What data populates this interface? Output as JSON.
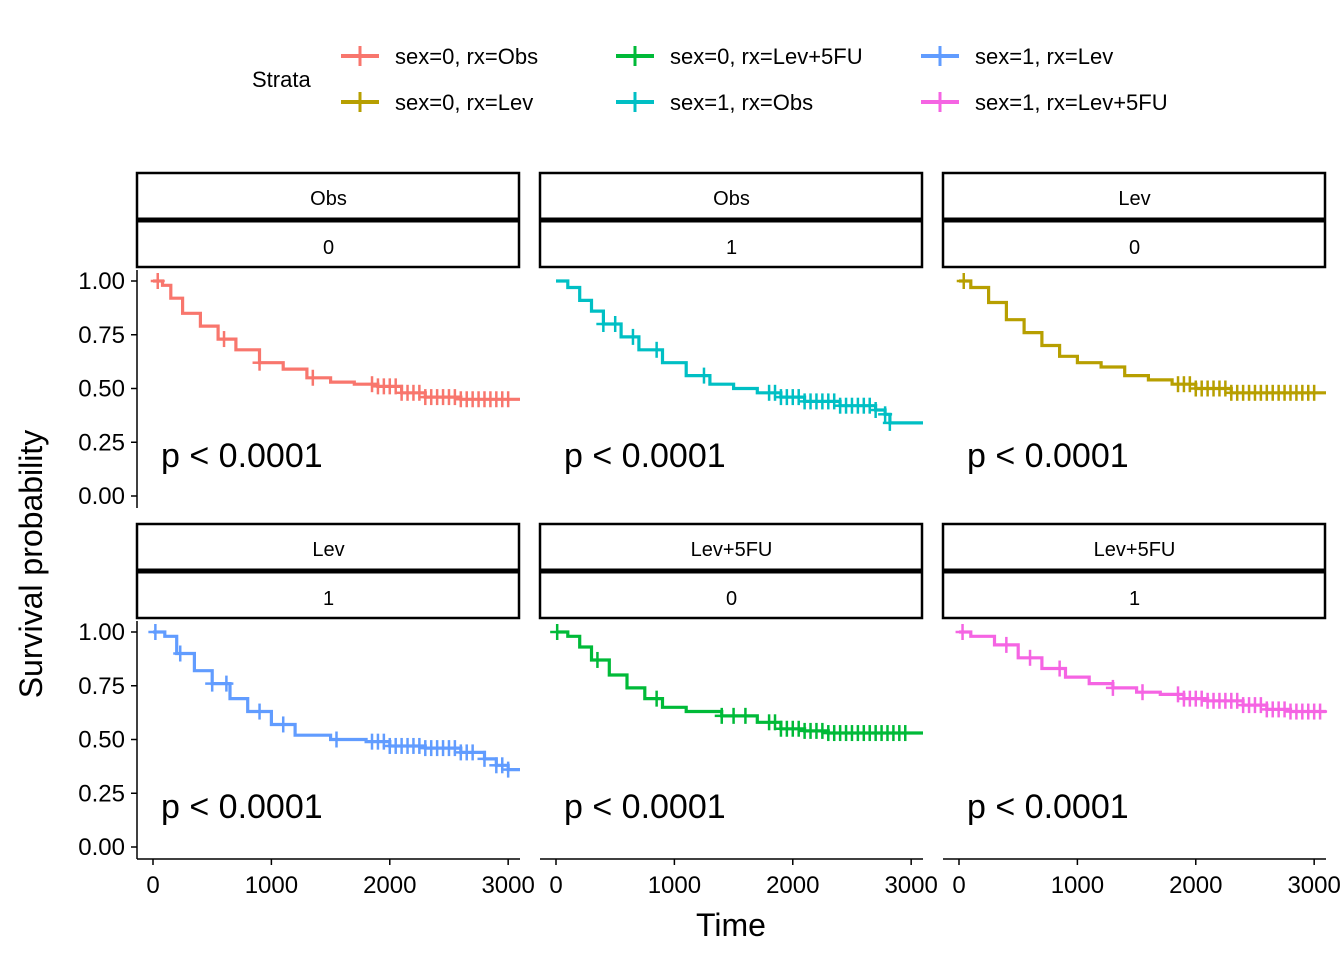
{
  "chart_data": {
    "type": "line",
    "subtype": "kaplan-meier-faceted",
    "ylabel": "Survival probability",
    "xlabel": "Time",
    "xlim": [
      0,
      3100
    ],
    "ylim": [
      0,
      1
    ],
    "x_ticks": [
      0,
      1000,
      2000,
      3000
    ],
    "y_ticks": [
      0,
      0.25,
      0.5,
      0.75,
      1
    ],
    "y_tick_labels": [
      "0.00",
      "0.25",
      "0.50",
      "0.75",
      "1.00"
    ],
    "legend": {
      "title": "Strata",
      "position": "top",
      "entries": [
        {
          "label": "sex=0, rx=Obs",
          "color": "#F8766D"
        },
        {
          "label": "sex=0, rx=Lev",
          "color": "#B79F00"
        },
        {
          "label": "sex=0, rx=Lev+5FU",
          "color": "#00BA38"
        },
        {
          "label": "sex=1, rx=Obs",
          "color": "#00BFC4"
        },
        {
          "label": "sex=1, rx=Lev",
          "color": "#619CFF"
        },
        {
          "label": "sex=1, rx=Lev+5FU",
          "color": "#F564E3"
        }
      ]
    },
    "panels": [
      {
        "strip_top": "Obs",
        "strip_bottom": "0",
        "color": "#F8766D",
        "annotation": "p < 0.0001",
        "curve": [
          [
            0,
            1.0
          ],
          [
            80,
            0.98
          ],
          [
            150,
            0.92
          ],
          [
            250,
            0.85
          ],
          [
            400,
            0.79
          ],
          [
            550,
            0.73
          ],
          [
            700,
            0.68
          ],
          [
            900,
            0.62
          ],
          [
            1100,
            0.59
          ],
          [
            1300,
            0.55
          ],
          [
            1500,
            0.53
          ],
          [
            1700,
            0.52
          ],
          [
            1900,
            0.51
          ],
          [
            2100,
            0.48
          ],
          [
            2300,
            0.46
          ],
          [
            2600,
            0.45
          ],
          [
            3100,
            0.45
          ]
        ],
        "censor_x": [
          40,
          600,
          900,
          1350,
          1850,
          1900,
          1950,
          2000,
          2050,
          2100,
          2150,
          2200,
          2250,
          2300,
          2350,
          2400,
          2450,
          2500,
          2550,
          2600,
          2650,
          2700,
          2750,
          2800,
          2850,
          2900,
          2950,
          3000
        ]
      },
      {
        "strip_top": "Obs",
        "strip_bottom": "1",
        "color": "#00BFC4",
        "annotation": "p < 0.0001",
        "curve": [
          [
            0,
            1.0
          ],
          [
            100,
            0.97
          ],
          [
            200,
            0.91
          ],
          [
            300,
            0.86
          ],
          [
            400,
            0.8
          ],
          [
            550,
            0.74
          ],
          [
            700,
            0.68
          ],
          [
            900,
            0.62
          ],
          [
            1100,
            0.56
          ],
          [
            1300,
            0.52
          ],
          [
            1500,
            0.5
          ],
          [
            1700,
            0.48
          ],
          [
            1900,
            0.46
          ],
          [
            2100,
            0.44
          ],
          [
            2400,
            0.42
          ],
          [
            2700,
            0.4
          ],
          [
            2780,
            0.38
          ],
          [
            2820,
            0.34
          ],
          [
            3100,
            0.34
          ]
        ],
        "censor_x": [
          400,
          500,
          650,
          850,
          1250,
          1800,
          1850,
          1900,
          1950,
          2000,
          2050,
          2100,
          2150,
          2200,
          2250,
          2300,
          2350,
          2400,
          2450,
          2500,
          2550,
          2600,
          2650,
          2700,
          2780,
          2820
        ]
      },
      {
        "strip_top": "Lev",
        "strip_bottom": "0",
        "color": "#B79F00",
        "annotation": "p < 0.0001",
        "curve": [
          [
            0,
            1.0
          ],
          [
            100,
            0.97
          ],
          [
            250,
            0.9
          ],
          [
            400,
            0.82
          ],
          [
            550,
            0.76
          ],
          [
            700,
            0.7
          ],
          [
            850,
            0.65
          ],
          [
            1000,
            0.62
          ],
          [
            1200,
            0.6
          ],
          [
            1400,
            0.56
          ],
          [
            1600,
            0.54
          ],
          [
            1800,
            0.52
          ],
          [
            2000,
            0.5
          ],
          [
            2300,
            0.48
          ],
          [
            3100,
            0.48
          ]
        ],
        "censor_x": [
          40,
          1850,
          1900,
          1950,
          2000,
          2050,
          2100,
          2150,
          2200,
          2250,
          2300,
          2350,
          2400,
          2450,
          2500,
          2550,
          2600,
          2650,
          2700,
          2750,
          2800,
          2850,
          2900,
          2950,
          3000
        ]
      },
      {
        "strip_top": "Lev",
        "strip_bottom": "1",
        "color": "#619CFF",
        "annotation": "p < 0.0001",
        "curve": [
          [
            0,
            1.0
          ],
          [
            100,
            0.98
          ],
          [
            200,
            0.9
          ],
          [
            350,
            0.82
          ],
          [
            500,
            0.76
          ],
          [
            650,
            0.69
          ],
          [
            800,
            0.63
          ],
          [
            1000,
            0.57
          ],
          [
            1200,
            0.52
          ],
          [
            1500,
            0.5
          ],
          [
            1800,
            0.49
          ],
          [
            2000,
            0.47
          ],
          [
            2300,
            0.46
          ],
          [
            2600,
            0.44
          ],
          [
            2800,
            0.41
          ],
          [
            2900,
            0.38
          ],
          [
            3000,
            0.36
          ],
          [
            3100,
            0.36
          ]
        ],
        "censor_x": [
          20,
          230,
          500,
          620,
          900,
          1100,
          1550,
          1850,
          1900,
          1950,
          2000,
          2050,
          2100,
          2150,
          2200,
          2250,
          2300,
          2350,
          2400,
          2450,
          2500,
          2550,
          2600,
          2650,
          2700,
          2800,
          2900,
          2950,
          3000
        ]
      },
      {
        "strip_top": "Lev+5FU",
        "strip_bottom": "0",
        "color": "#00BA38",
        "annotation": "p < 0.0001",
        "curve": [
          [
            0,
            1.0
          ],
          [
            100,
            0.98
          ],
          [
            200,
            0.93
          ],
          [
            300,
            0.87
          ],
          [
            450,
            0.8
          ],
          [
            600,
            0.74
          ],
          [
            750,
            0.69
          ],
          [
            900,
            0.65
          ],
          [
            1100,
            0.63
          ],
          [
            1400,
            0.61
          ],
          [
            1700,
            0.58
          ],
          [
            1900,
            0.55
          ],
          [
            2100,
            0.54
          ],
          [
            2300,
            0.53
          ],
          [
            3100,
            0.53
          ]
        ],
        "censor_x": [
          10,
          350,
          850,
          1400,
          1500,
          1600,
          1800,
          1850,
          1900,
          1950,
          2000,
          2050,
          2100,
          2150,
          2200,
          2250,
          2300,
          2350,
          2400,
          2450,
          2500,
          2550,
          2600,
          2650,
          2700,
          2750,
          2800,
          2850,
          2900,
          2950
        ]
      },
      {
        "strip_top": "Lev+5FU",
        "strip_bottom": "1",
        "color": "#F564E3",
        "annotation": "p < 0.0001",
        "curve": [
          [
            0,
            1.0
          ],
          [
            100,
            0.98
          ],
          [
            300,
            0.94
          ],
          [
            500,
            0.88
          ],
          [
            700,
            0.83
          ],
          [
            900,
            0.79
          ],
          [
            1100,
            0.76
          ],
          [
            1300,
            0.74
          ],
          [
            1500,
            0.72
          ],
          [
            1700,
            0.71
          ],
          [
            1900,
            0.69
          ],
          [
            2100,
            0.68
          ],
          [
            2400,
            0.66
          ],
          [
            2600,
            0.64
          ],
          [
            2800,
            0.63
          ],
          [
            3100,
            0.63
          ]
        ],
        "censor_x": [
          30,
          400,
          600,
          850,
          1300,
          1550,
          1850,
          1900,
          1950,
          2000,
          2050,
          2100,
          2150,
          2200,
          2250,
          2300,
          2350,
          2400,
          2450,
          2500,
          2550,
          2600,
          2650,
          2700,
          2750,
          2800,
          2850,
          2900,
          2950,
          3000,
          3050
        ]
      }
    ]
  }
}
